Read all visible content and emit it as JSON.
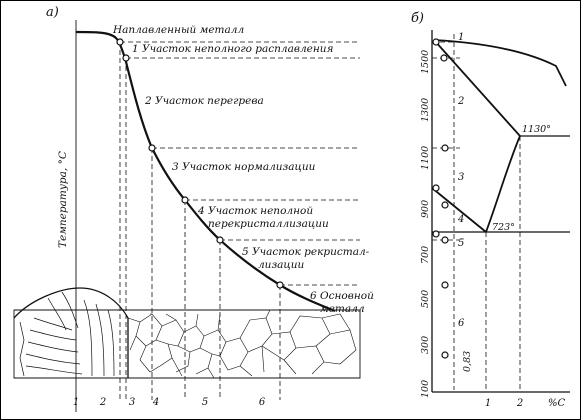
{
  "panel_a": {
    "label": "а)",
    "y_axis_label": "Температура, °С",
    "zones": [
      {
        "n": "",
        "text": "Наплавленный металл"
      },
      {
        "n": "1",
        "text": "Участок неполного расплавления"
      },
      {
        "n": "2",
        "text": "Участок перегрева"
      },
      {
        "n": "3",
        "text": "Участок нормализации"
      },
      {
        "n": "4",
        "text": "Участок неполной",
        "text2": "перекристаллизации"
      },
      {
        "n": "5",
        "text": "Участок рекристал-",
        "text2": "лизации"
      },
      {
        "n": "6",
        "text": "Основной",
        "text2": "металл"
      }
    ],
    "bottom_numbers": [
      "1",
      "2",
      "3",
      "4",
      "5",
      "6"
    ]
  },
  "panel_b": {
    "label": "б)",
    "y_ticks": [
      "1500",
      "1300",
      "1100",
      "900",
      "700",
      "500",
      "300",
      "100"
    ],
    "x_ticks": [
      "0,83",
      "1",
      "2"
    ],
    "x_unit": "%C",
    "zone_numbers": [
      "1",
      "2",
      "3",
      "4",
      "5",
      "6"
    ],
    "annotations": [
      "1130°",
      "723°"
    ]
  }
}
